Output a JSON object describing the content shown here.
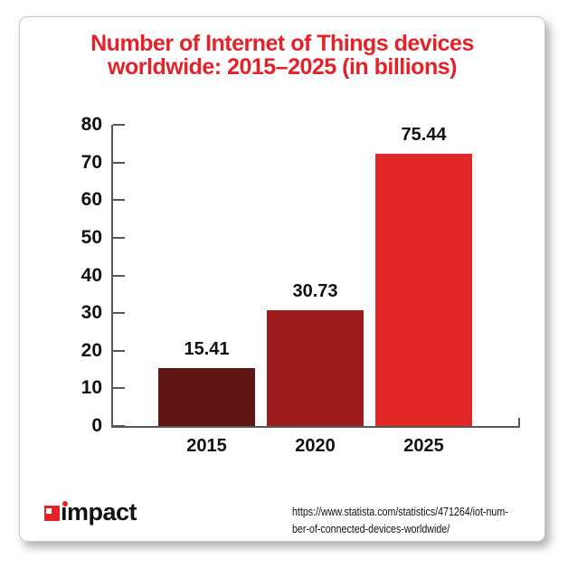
{
  "header": {
    "title_line1": "Number of Internet of Things devices",
    "title_line2": "worldwide: 2015–2025 (in billions)",
    "title_color": "#e3222a"
  },
  "chart_data": {
    "type": "bar",
    "title": "Number of Internet of Things devices worldwide: 2015–2025 (in billions)",
    "categories": [
      "2015",
      "2020",
      "2025"
    ],
    "values": [
      15.41,
      30.73,
      75.44
    ],
    "value_labels": [
      "15.41",
      "30.73",
      "75.44"
    ],
    "bar_colors": [
      "#5e1514",
      "#9e1c1b",
      "#e22827"
    ],
    "ylim": [
      0,
      80
    ],
    "yticks": [
      0,
      10,
      20,
      30,
      40,
      50,
      60,
      70,
      80
    ],
    "xlabel": "",
    "ylabel": "",
    "grid": false,
    "legend": false,
    "axis_color": "#57585b",
    "label_color": "#111111"
  },
  "footer": {
    "logo_text": "impact",
    "logo_display": "ımpact",
    "logo_accent_color": "#e3222a",
    "source_line1": "https://www.statista.com/statistics/471264/iot-num-",
    "source_line2": "ber-of-connected-devices-worldwide/"
  }
}
